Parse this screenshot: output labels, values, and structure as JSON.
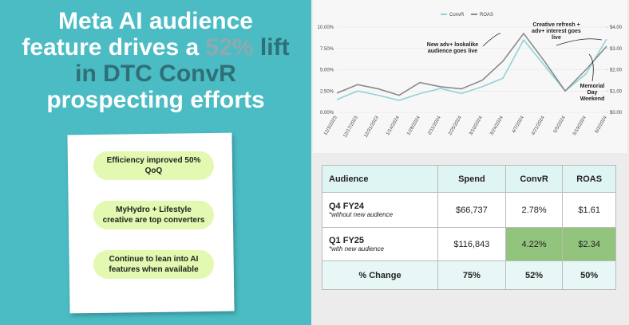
{
  "title": {
    "parts": [
      {
        "text": "Meta AI audience feature drives a ",
        "color": "#ffffff"
      },
      {
        "text": "52%",
        "color": "#8fa9b0"
      },
      {
        "text": " lift in DTC ConvR",
        "color": "#2e6f78"
      },
      {
        "text": " prospecting efforts",
        "color": "#ffffff"
      }
    ]
  },
  "callouts": [
    "Efficiency improved 50% QoQ",
    "MyHydro + Lifestyle creative are top converters",
    "Continue to lean into AI features when available"
  ],
  "chart_data": {
    "type": "line",
    "categories": [
      "12/3/2023",
      "12/17/2023",
      "12/31/2023",
      "1/14/2024",
      "1/28/2024",
      "2/11/2024",
      "2/25/2024",
      "3/10/2024",
      "3/24/2024",
      "4/7/2024",
      "4/21/2024",
      "5/5/2024",
      "5/19/2024",
      "6/2/2024"
    ],
    "series": [
      {
        "name": "ConvR",
        "color": "#8fd3d6",
        "values": [
          1.5,
          2.5,
          2.0,
          1.4,
          2.2,
          2.8,
          2.2,
          3.0,
          4.0,
          8.5,
          5.5,
          2.5,
          4.5,
          8.6
        ]
      },
      {
        "name": "ROAS",
        "color": "#8a8a8a",
        "axis": "y2",
        "values": [
          0.9,
          1.3,
          1.1,
          0.8,
          1.4,
          1.2,
          1.1,
          1.5,
          2.4,
          3.7,
          2.4,
          1.0,
          2.0,
          3.1
        ]
      }
    ],
    "ylim": [
      0,
      10
    ],
    "yticks": [
      {
        "value": 0,
        "label": "0.00%"
      },
      {
        "value": 2.5,
        "label": "2.50%"
      },
      {
        "value": 5,
        "label": "5.00%"
      },
      {
        "value": 7.5,
        "label": "7.50%"
      },
      {
        "value": 10,
        "label": "10.00%"
      }
    ],
    "y2lim": [
      0,
      4
    ],
    "y2ticks": [
      {
        "value": 0,
        "label": "$0.00"
      },
      {
        "value": 1,
        "label": "$1.00"
      },
      {
        "value": 2,
        "label": "$2.00"
      },
      {
        "value": 3,
        "label": "$3.00"
      },
      {
        "value": 4,
        "label": "$4.00"
      }
    ],
    "annotations": [
      {
        "lines": [
          "New adv+ lookalike",
          "audience goes live"
        ],
        "at": 8
      },
      {
        "lines": [
          "Creative refresh +",
          "adv+ interest goes",
          "live"
        ],
        "at": 12
      },
      {
        "lines": [
          "Memorial",
          "Day",
          "Weekend"
        ],
        "at": 13
      }
    ]
  },
  "table": {
    "headers": [
      "Audience",
      "Spend",
      "ConvR",
      "ROAS"
    ],
    "rows": [
      {
        "label": "Q4 FY24",
        "note": "*without new audience",
        "cells": [
          "$66,737",
          "2.78%",
          "$1.61"
        ],
        "highlight": []
      },
      {
        "label": "Q1 FY25",
        "note": "*with new audience",
        "cells": [
          "$116,843",
          "4.22%",
          "$2.34"
        ],
        "highlight": [
          1,
          2
        ]
      },
      {
        "label": "% Change",
        "cells": [
          "75%",
          "52%",
          "50%"
        ],
        "highlight": []
      }
    ]
  }
}
